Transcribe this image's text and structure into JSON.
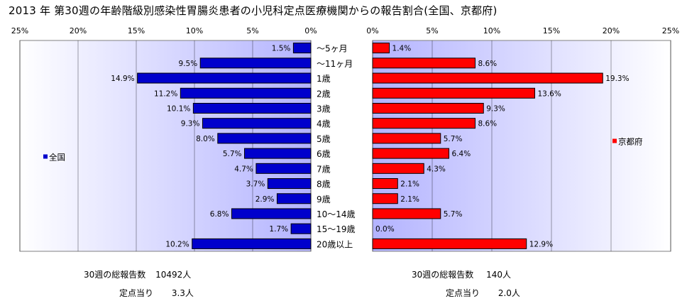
{
  "title": "2013 年 第30週の年齢階級別感染性胃腸炎患者の小児科定点医療機関からの報告割合(全国、京都府)",
  "chart_data": {
    "type": "bar",
    "orientation": "horizontal",
    "layout": "butterfly",
    "categories": [
      "～5ヶ月",
      "～11ヶ月",
      "1歳",
      "2歳",
      "3歳",
      "4歳",
      "5歳",
      "6歳",
      "7歳",
      "8歳",
      "9歳",
      "10～14歳",
      "15～19歳",
      "20歳以上"
    ],
    "left_axis_ticks": [
      "25%",
      "20%",
      "15%",
      "10%",
      "5%",
      "0%"
    ],
    "right_axis_ticks": [
      "0%",
      "5%",
      "10%",
      "15%",
      "20%",
      "25%"
    ],
    "xlim": [
      0,
      25
    ],
    "grid": true,
    "series": [
      {
        "name": "全国",
        "side": "left",
        "color": "#0000cc",
        "values": [
          1.5,
          9.5,
          14.9,
          11.2,
          10.1,
          9.3,
          8.0,
          5.7,
          4.7,
          3.7,
          2.9,
          6.8,
          1.7,
          10.2
        ],
        "labels": [
          "1.5%",
          "9.5%",
          "14.9%",
          "11.2%",
          "10.1%",
          "9.3%",
          "8.0%",
          "5.7%",
          "4.7%",
          "3.7%",
          "2.9%",
          "6.8%",
          "1.7%",
          "10.2%"
        ]
      },
      {
        "name": "京都府",
        "side": "right",
        "color": "#ff0000",
        "values": [
          1.4,
          8.6,
          19.3,
          13.6,
          9.3,
          8.6,
          5.7,
          6.4,
          4.3,
          2.1,
          2.1,
          5.7,
          0.0,
          12.9
        ],
        "labels": [
          "1.4%",
          "8.6%",
          "19.3%",
          "13.6%",
          "9.3%",
          "8.6%",
          "5.7%",
          "6.4%",
          "4.3%",
          "2.1%",
          "2.1%",
          "5.7%",
          "0.0%",
          "12.9%"
        ]
      }
    ],
    "legend": [
      {
        "name": "全国",
        "placement": "left-center"
      },
      {
        "name": "京都府",
        "placement": "right-center"
      }
    ]
  },
  "stats": {
    "national": {
      "total_label": "30週の総報告数",
      "total_value": "10492人",
      "per_site_label": "定点当り",
      "per_site_value": "3.3人"
    },
    "kyoto": {
      "total_label": "30週の総報告数",
      "total_value": "140人",
      "per_site_label": "定点当り",
      "per_site_value": "2.0人"
    }
  },
  "colors": {
    "plot_background_top": "#ffffff",
    "plot_background_bottom": "#b3b3ff",
    "grid": "#000000"
  }
}
